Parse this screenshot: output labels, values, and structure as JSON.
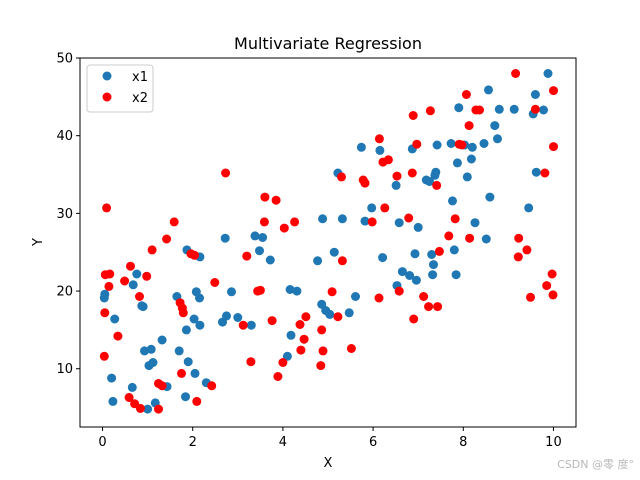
{
  "chart_data": {
    "type": "scatter",
    "title": "Multivariate Regression",
    "xlabel": "X",
    "ylabel": "Y",
    "xlim": [
      -0.5,
      10.5
    ],
    "ylim": [
      2.5,
      50
    ],
    "xticks": [
      0,
      2,
      4,
      6,
      8,
      10
    ],
    "yticks": [
      10,
      20,
      30,
      40,
      50
    ],
    "grid": false,
    "legend_position": "top-left",
    "series": [
      {
        "name": "x1",
        "color": "#1f77b4",
        "points": [
          [
            0.04,
            19.1
          ],
          [
            0.05,
            19.6
          ],
          [
            0.2,
            8.8
          ],
          [
            0.23,
            5.8
          ],
          [
            0.27,
            16.4
          ],
          [
            0.66,
            7.6
          ],
          [
            0.68,
            20.8
          ],
          [
            0.76,
            22.2
          ],
          [
            0.87,
            18.1
          ],
          [
            0.9,
            18.0
          ],
          [
            0.93,
            12.3
          ],
          [
            1.0,
            4.8
          ],
          [
            1.03,
            10.4
          ],
          [
            1.08,
            12.5
          ],
          [
            1.12,
            10.8
          ],
          [
            1.17,
            5.6
          ],
          [
            1.32,
            13.7
          ],
          [
            1.43,
            7.7
          ],
          [
            1.65,
            19.3
          ],
          [
            1.7,
            12.3
          ],
          [
            1.84,
            6.4
          ],
          [
            1.86,
            15.0
          ],
          [
            1.87,
            25.3
          ],
          [
            1.9,
            10.9
          ],
          [
            2.03,
            16.4
          ],
          [
            2.05,
            9.4
          ],
          [
            2.08,
            19.9
          ],
          [
            2.15,
            19.1
          ],
          [
            2.16,
            24.4
          ],
          [
            2.16,
            15.6
          ],
          [
            2.3,
            8.2
          ],
          [
            2.66,
            16.0
          ],
          [
            2.72,
            26.8
          ],
          [
            2.75,
            16.8
          ],
          [
            2.86,
            19.9
          ],
          [
            3.0,
            16.6
          ],
          [
            3.3,
            15.6
          ],
          [
            3.38,
            27.1
          ],
          [
            3.48,
            25.2
          ],
          [
            3.55,
            26.9
          ],
          [
            3.72,
            24.0
          ],
          [
            4.1,
            11.6
          ],
          [
            4.16,
            20.2
          ],
          [
            4.18,
            14.3
          ],
          [
            4.31,
            20.0
          ],
          [
            4.77,
            23.9
          ],
          [
            4.86,
            18.3
          ],
          [
            4.88,
            29.3
          ],
          [
            4.95,
            17.5
          ],
          [
            5.04,
            17.0
          ],
          [
            5.14,
            25.0
          ],
          [
            5.22,
            35.2
          ],
          [
            5.32,
            29.3
          ],
          [
            5.47,
            17.2
          ],
          [
            5.61,
            19.3
          ],
          [
            5.74,
            38.5
          ],
          [
            5.82,
            29.0
          ],
          [
            5.97,
            30.7
          ],
          [
            6.15,
            38.1
          ],
          [
            6.21,
            24.3
          ],
          [
            6.51,
            33.6
          ],
          [
            6.53,
            20.7
          ],
          [
            6.58,
            28.8
          ],
          [
            6.65,
            22.5
          ],
          [
            6.81,
            22.0
          ],
          [
            6.87,
            38.3
          ],
          [
            6.93,
            24.8
          ],
          [
            6.96,
            21.4
          ],
          [
            7.0,
            28.2
          ],
          [
            7.18,
            34.3
          ],
          [
            7.25,
            34.1
          ],
          [
            7.3,
            24.7
          ],
          [
            7.32,
            22.1
          ],
          [
            7.34,
            23.4
          ],
          [
            7.37,
            34.9
          ],
          [
            7.39,
            35.3
          ],
          [
            7.42,
            38.8
          ],
          [
            7.73,
            39.0
          ],
          [
            7.76,
            31.6
          ],
          [
            7.8,
            25.3
          ],
          [
            7.84,
            22.1
          ],
          [
            7.87,
            36.5
          ],
          [
            7.9,
            43.6
          ],
          [
            8.03,
            38.8
          ],
          [
            8.09,
            34.7
          ],
          [
            8.18,
            37.0
          ],
          [
            8.2,
            38.5
          ],
          [
            8.26,
            28.8
          ],
          [
            8.46,
            39.0
          ],
          [
            8.51,
            26.7
          ],
          [
            8.59,
            32.1
          ],
          [
            8.56,
            45.9
          ],
          [
            8.7,
            41.3
          ],
          [
            8.76,
            39.6
          ],
          [
            8.8,
            43.4
          ],
          [
            9.13,
            43.4
          ],
          [
            9.45,
            30.7
          ],
          [
            9.55,
            42.8
          ],
          [
            9.6,
            45.3
          ],
          [
            9.62,
            35.3
          ],
          [
            9.78,
            43.3
          ],
          [
            9.88,
            48.0
          ]
        ]
      },
      {
        "name": "x2",
        "color": "#ff0000",
        "points": [
          [
            0.04,
            11.6
          ],
          [
            0.05,
            17.2
          ],
          [
            0.06,
            22.1
          ],
          [
            0.09,
            30.7
          ],
          [
            0.14,
            20.6
          ],
          [
            0.16,
            22.2
          ],
          [
            0.34,
            14.2
          ],
          [
            0.49,
            21.3
          ],
          [
            0.59,
            6.3
          ],
          [
            0.62,
            23.2
          ],
          [
            0.71,
            5.5
          ],
          [
            0.82,
            19.3
          ],
          [
            0.84,
            4.9
          ],
          [
            0.98,
            21.9
          ],
          [
            1.1,
            25.3
          ],
          [
            1.24,
            8.1
          ],
          [
            1.24,
            4.8
          ],
          [
            1.32,
            7.8
          ],
          [
            1.42,
            26.7
          ],
          [
            1.59,
            28.9
          ],
          [
            1.72,
            18.5
          ],
          [
            1.75,
            9.4
          ],
          [
            1.77,
            17.8
          ],
          [
            1.79,
            17.2
          ],
          [
            1.96,
            24.8
          ],
          [
            2.04,
            24.6
          ],
          [
            2.09,
            5.8
          ],
          [
            2.42,
            7.8
          ],
          [
            2.49,
            21.1
          ],
          [
            2.73,
            35.2
          ],
          [
            3.12,
            15.6
          ],
          [
            3.2,
            24.5
          ],
          [
            3.29,
            10.9
          ],
          [
            3.44,
            20.0
          ],
          [
            3.5,
            20.1
          ],
          [
            3.59,
            28.9
          ],
          [
            3.6,
            32.1
          ],
          [
            3.76,
            16.2
          ],
          [
            3.85,
            31.7
          ],
          [
            3.89,
            9.0
          ],
          [
            4.0,
            10.8
          ],
          [
            4.03,
            28.1
          ],
          [
            4.26,
            28.9
          ],
          [
            4.38,
            15.7
          ],
          [
            4.4,
            12.4
          ],
          [
            4.47,
            13.8
          ],
          [
            4.51,
            16.7
          ],
          [
            4.84,
            10.4
          ],
          [
            4.86,
            15.0
          ],
          [
            4.89,
            12.3
          ],
          [
            5.09,
            19.9
          ],
          [
            5.22,
            16.7
          ],
          [
            5.3,
            34.7
          ],
          [
            5.32,
            23.9
          ],
          [
            5.52,
            12.6
          ],
          [
            5.78,
            34.3
          ],
          [
            5.82,
            33.9
          ],
          [
            5.98,
            28.9
          ],
          [
            6.13,
            19.1
          ],
          [
            6.14,
            39.6
          ],
          [
            6.22,
            36.6
          ],
          [
            6.34,
            36.9
          ],
          [
            6.26,
            30.7
          ],
          [
            6.53,
            34.8
          ],
          [
            6.58,
            20.0
          ],
          [
            6.79,
            29.4
          ],
          [
            6.87,
            35.2
          ],
          [
            6.89,
            42.6
          ],
          [
            6.9,
            16.4
          ],
          [
            6.97,
            38.9
          ],
          [
            7.12,
            19.3
          ],
          [
            7.23,
            18.0
          ],
          [
            7.27,
            43.2
          ],
          [
            7.41,
            33.6
          ],
          [
            7.43,
            18.0
          ],
          [
            7.47,
            25.1
          ],
          [
            7.68,
            27.1
          ],
          [
            7.82,
            29.3
          ],
          [
            7.91,
            38.9
          ],
          [
            7.97,
            38.8
          ],
          [
            8.07,
            45.3
          ],
          [
            8.13,
            41.3
          ],
          [
            8.14,
            26.8
          ],
          [
            8.28,
            43.3
          ],
          [
            8.36,
            43.3
          ],
          [
            9.16,
            48.0
          ],
          [
            9.23,
            26.8
          ],
          [
            9.22,
            24.4
          ],
          [
            9.41,
            25.3
          ],
          [
            9.49,
            19.2
          ],
          [
            9.6,
            43.4
          ],
          [
            9.81,
            35.2
          ],
          [
            9.85,
            20.7
          ],
          [
            9.97,
            22.2
          ],
          [
            9.99,
            19.5
          ],
          [
            10.0,
            38.6
          ],
          [
            10.0,
            45.8
          ]
        ]
      }
    ]
  },
  "watermark": "CSDN @零  度°"
}
